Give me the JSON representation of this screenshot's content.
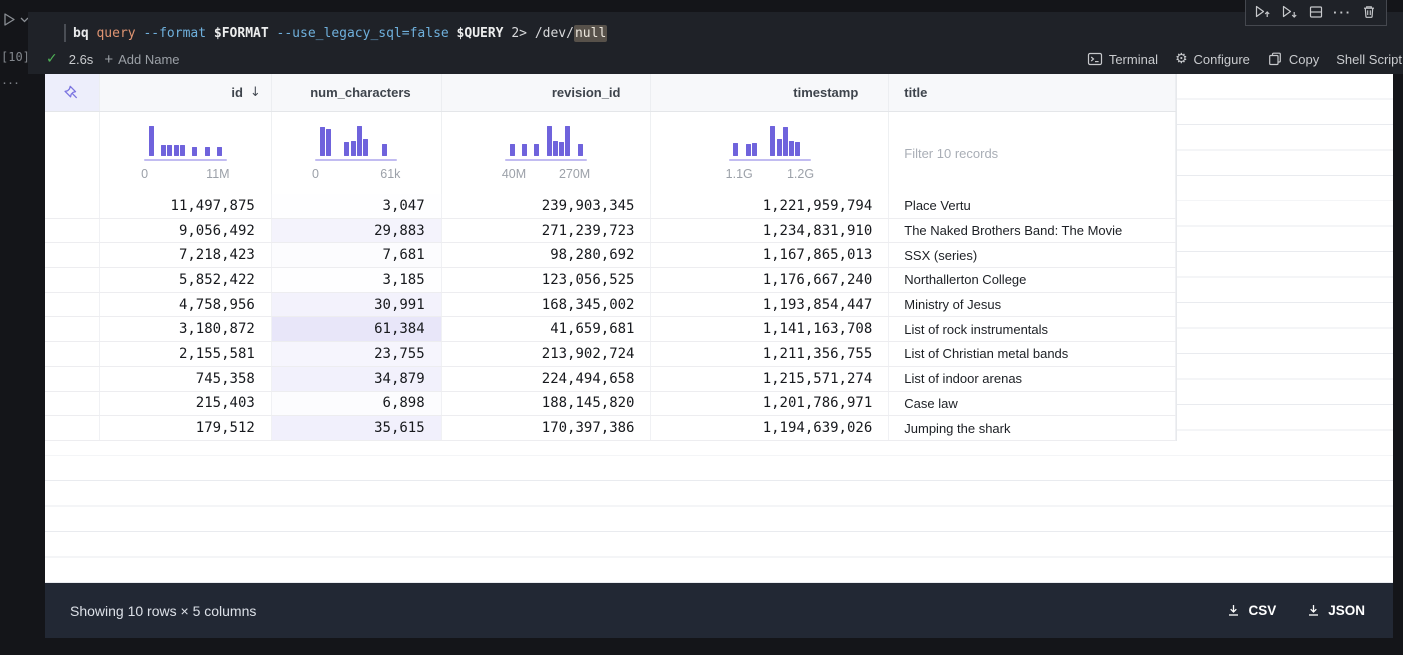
{
  "cell": {
    "execution_count": "[10]",
    "code_tokens": [
      {
        "text": "bq",
        "cls": "tok-cmd"
      },
      {
        "text": " ",
        "cls": "tok-plain"
      },
      {
        "text": "query",
        "cls": "tok-sub"
      },
      {
        "text": " ",
        "cls": "tok-plain"
      },
      {
        "text": "--format",
        "cls": "tok-flag"
      },
      {
        "text": " ",
        "cls": "tok-plain"
      },
      {
        "text": "$FORMAT",
        "cls": "tok-var"
      },
      {
        "text": " ",
        "cls": "tok-plain"
      },
      {
        "text": "--use_legacy_sql=false",
        "cls": "tok-flag"
      },
      {
        "text": " ",
        "cls": "tok-plain"
      },
      {
        "text": "$QUERY",
        "cls": "tok-var"
      },
      {
        "text": " ",
        "cls": "tok-plain"
      },
      {
        "text": "2>",
        "cls": "tok-plain"
      },
      {
        "text": " ",
        "cls": "tok-plain"
      },
      {
        "text": "/dev/",
        "cls": "tok-plain"
      },
      {
        "text": "null",
        "cls": "tok-hl"
      }
    ],
    "status": {
      "duration": "2.6s",
      "add_name_label": "Add Name"
    },
    "actions": {
      "terminal": "Terminal",
      "configure": "Configure",
      "copy": "Copy",
      "shell_script": "Shell Script"
    },
    "toolbar_icons": [
      "run-above-icon",
      "run-below-icon",
      "split-cell-icon",
      "more-options-icon",
      "delete-cell-icon"
    ]
  },
  "table": {
    "filter_placeholder": "Filter 10 records",
    "num_characters_max": 61384,
    "shade_color_rgb": "111,99,220",
    "columns": [
      {
        "key": "pin",
        "type": "pin"
      },
      {
        "key": "id",
        "label": "id",
        "type": "number",
        "sorted": "desc",
        "hist": {
          "bars": [
            1.0,
            0,
            0.35,
            0.35,
            0.35,
            0.35,
            0,
            0.3,
            0,
            0.3,
            0,
            0.3
          ],
          "min_label": "0",
          "max_label": "11M"
        }
      },
      {
        "key": "num_characters",
        "label": "num_characters",
        "type": "number",
        "hist": {
          "bars": [
            0.95,
            0.9,
            0,
            0,
            0.45,
            0.5,
            1.0,
            0.55,
            0,
            0,
            0.4,
            0
          ],
          "min_label": "0",
          "max_label": "61k"
        }
      },
      {
        "key": "revision_id",
        "label": "revision_id",
        "type": "number",
        "hist": {
          "bars": [
            0.38,
            0,
            0.38,
            0,
            0.38,
            0,
            1.0,
            0.5,
            0.45,
            1.0,
            0,
            0.38
          ],
          "min_label": "40M",
          "max_label": "270M"
        }
      },
      {
        "key": "timestamp",
        "label": "timestamp",
        "type": "number",
        "hist": {
          "bars": [
            0.42,
            0,
            0.4,
            0.42,
            0,
            0,
            1.0,
            0.55,
            0.95,
            0.5,
            0.45,
            0
          ],
          "min_label": "1.1G",
          "max_label": "1.2G"
        }
      },
      {
        "key": "title",
        "label": "title",
        "type": "text"
      }
    ],
    "rows": [
      {
        "id": "11,497,875",
        "num_characters": "3,047",
        "revision_id": "239,903,345",
        "timestamp": "1,221,959,794",
        "title": "Place Vertu"
      },
      {
        "id": "9,056,492",
        "num_characters": "29,883",
        "revision_id": "271,239,723",
        "timestamp": "1,234,831,910",
        "title": "The Naked Brothers Band: The Movie"
      },
      {
        "id": "7,218,423",
        "num_characters": "7,681",
        "revision_id": "98,280,692",
        "timestamp": "1,167,865,013",
        "title": "SSX (series)"
      },
      {
        "id": "5,852,422",
        "num_characters": "3,185",
        "revision_id": "123,056,525",
        "timestamp": "1,176,667,240",
        "title": "Northallerton College"
      },
      {
        "id": "4,758,956",
        "num_characters": "30,991",
        "revision_id": "168,345,002",
        "timestamp": "1,193,854,447",
        "title": "Ministry of Jesus"
      },
      {
        "id": "3,180,872",
        "num_characters": "61,384",
        "revision_id": "41,659,681",
        "timestamp": "1,141,163,708",
        "title": "List of rock instrumentals"
      },
      {
        "id": "2,155,581",
        "num_characters": "23,755",
        "revision_id": "213,902,724",
        "timestamp": "1,211,356,755",
        "title": "List of Christian metal bands"
      },
      {
        "id": "745,358",
        "num_characters": "34,879",
        "revision_id": "224,494,658",
        "timestamp": "1,215,571,274",
        "title": "List of indoor arenas"
      },
      {
        "id": "215,403",
        "num_characters": "6,898",
        "revision_id": "188,145,820",
        "timestamp": "1,201,786,971",
        "title": "Case law"
      },
      {
        "id": "179,512",
        "num_characters": "35,615",
        "revision_id": "170,397,386",
        "timestamp": "1,194,639,026",
        "title": "Jumping the shark"
      }
    ]
  },
  "footer": {
    "summary": "Showing 10 rows × 5 columns",
    "downloads": [
      "CSV",
      "JSON"
    ]
  },
  "colors": {
    "accent_purple": "#6f63dc",
    "histogram_baseline": "#c2bcf1",
    "footer_bg": "#222834",
    "cell_bg": "#1f2228",
    "page_bg": "#141519",
    "success_green": "#4fb257"
  }
}
